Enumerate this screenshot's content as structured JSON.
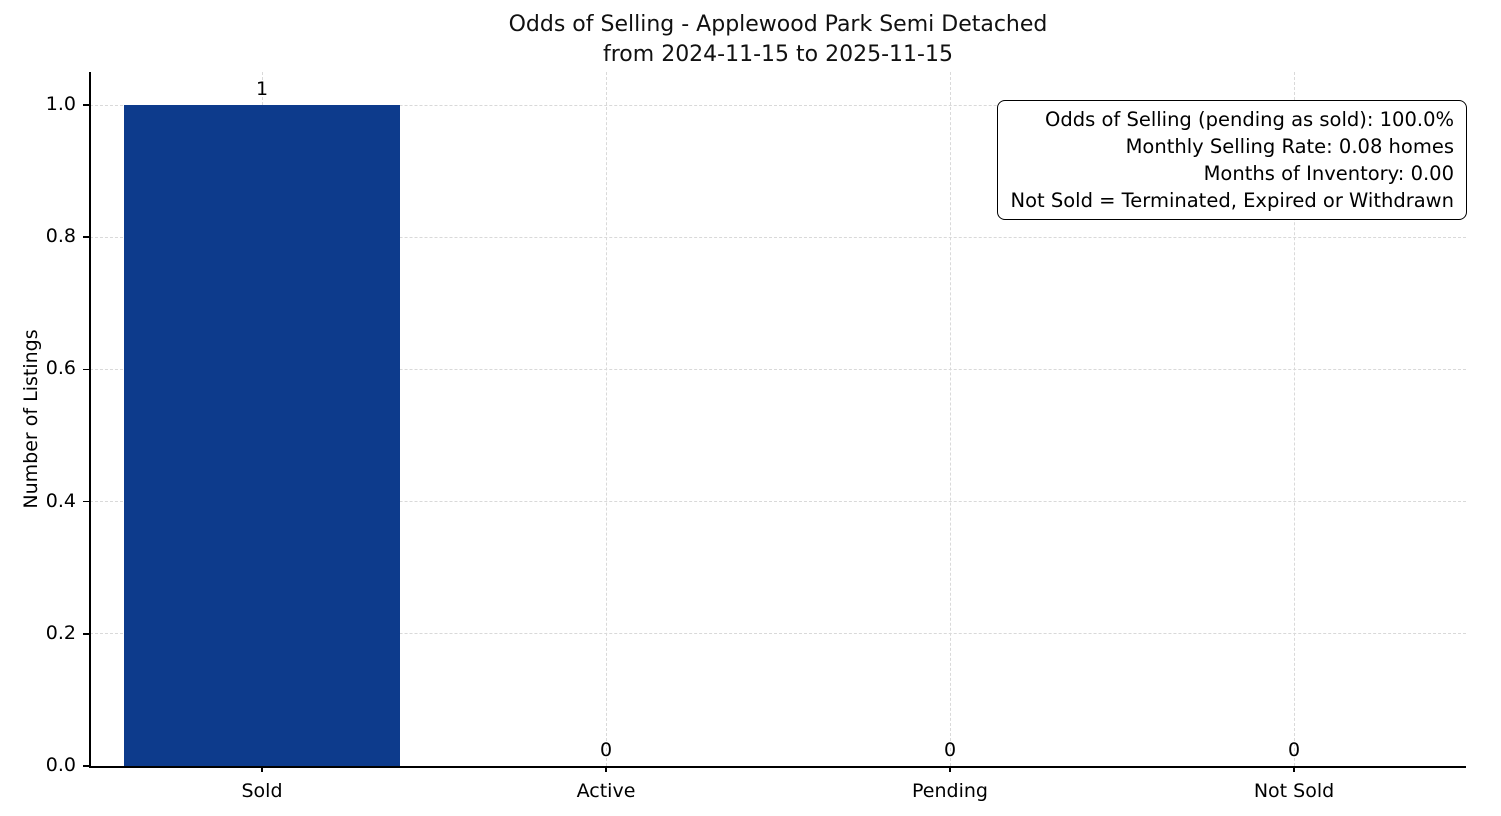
{
  "chart_data": {
    "type": "bar",
    "title": "Odds of Selling - Applewood Park Semi Detached",
    "subtitle": "from 2024-11-15 to 2025-11-15",
    "xlabel": "",
    "ylabel": "Number of Listings",
    "categories": [
      "Sold",
      "Active",
      "Pending",
      "Not Sold"
    ],
    "values": [
      1,
      0,
      0,
      0
    ],
    "bar_value_labels": [
      "1",
      "0",
      "0",
      "0"
    ],
    "ylim": [
      0,
      1.05
    ],
    "yticks": [
      0,
      0.2,
      0.4,
      0.6,
      0.8,
      1.0
    ],
    "ytick_labels": [
      "0.0",
      "0.2",
      "0.4",
      "0.6",
      "0.8",
      "1.0"
    ],
    "grid": {
      "style": "dashed",
      "axes": "both",
      "color": "#d9d9d9"
    },
    "legend": "none",
    "bar_color": "#0d3b8c",
    "annotation_box": {
      "position": "top-right",
      "align": "right",
      "lines": [
        "Odds of Selling (pending as sold): 100.0%",
        "Monthly Selling Rate: 0.08 homes",
        "Months of Inventory: 0.00",
        "Not Sold = Terminated, Expired or Withdrawn"
      ]
    }
  }
}
